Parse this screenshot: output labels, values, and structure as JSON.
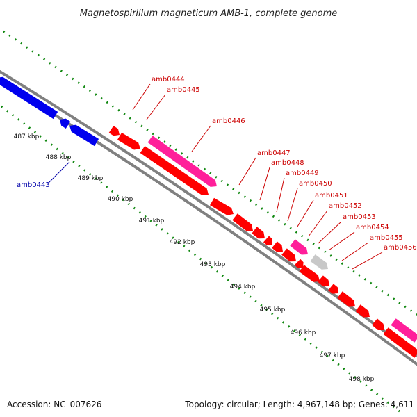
{
  "title": "Magnetospirillum magneticum AMB-1, complete genome",
  "footer": {
    "accession": "Accession: NC_007626",
    "summary": "Topology: circular; Length: 4,967,148 bp; Genes: 4,611"
  },
  "colors": {
    "reverse_strand": "#0000ee",
    "forward_strand": "#ff0000",
    "rna": "#ff1f9a",
    "other": "#c8c8c8",
    "axis": "#808080",
    "ticks": "#118811",
    "label_forward": "#cc0000",
    "label_reverse": "#0000aa"
  },
  "kbp_ticks": [
    "487 kbp",
    "488 kbp",
    "489 kbp",
    "490 kbp",
    "491 kbp",
    "492 kbp",
    "493 kbp",
    "494 kbp",
    "495 kbp",
    "496 kbp",
    "497 kbp",
    "498 kbp"
  ],
  "gene_labels": [
    {
      "id": "amb0443",
      "strand": "reverse"
    },
    {
      "id": "amb0444",
      "strand": "forward"
    },
    {
      "id": "amb0445",
      "strand": "forward"
    },
    {
      "id": "amb0446",
      "strand": "forward"
    },
    {
      "id": "amb0447",
      "strand": "forward"
    },
    {
      "id": "amb0448",
      "strand": "forward"
    },
    {
      "id": "amb0449",
      "strand": "forward"
    },
    {
      "id": "amb0450",
      "strand": "forward"
    },
    {
      "id": "amb0451",
      "strand": "forward"
    },
    {
      "id": "amb0452",
      "strand": "forward"
    },
    {
      "id": "amb0453",
      "strand": "forward"
    },
    {
      "id": "amb0454",
      "strand": "forward"
    },
    {
      "id": "amb0455",
      "strand": "forward"
    },
    {
      "id": "amb0456",
      "strand": "forward"
    }
  ]
}
